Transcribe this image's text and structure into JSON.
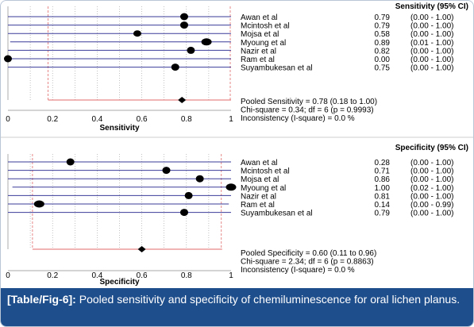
{
  "chart_data": [
    {
      "type": "forest",
      "measure": "Sensitivity",
      "header": "Sensitivity (95% CI)",
      "xlabel": "Sensitivity",
      "xlim": [
        0,
        1
      ],
      "ticks": [
        "0",
        "0.2",
        "0.4",
        "0.6",
        "0.8",
        "1"
      ],
      "studies": [
        {
          "name": "Awan et al",
          "est": 0.79,
          "lo": 0.0,
          "hi": 1.0,
          "ci_text": "(0.00 - 1.00)",
          "est_text": "0.79"
        },
        {
          "name": "Mcintosh et al",
          "est": 0.79,
          "lo": 0.0,
          "hi": 1.0,
          "ci_text": "(0.00 - 1.00)",
          "est_text": "0.79"
        },
        {
          "name": "Mojsa et al",
          "est": 0.58,
          "lo": 0.0,
          "hi": 1.0,
          "ci_text": "(0.00 - 1.00)",
          "est_text": "0.58"
        },
        {
          "name": "Myoung et al",
          "est": 0.89,
          "lo": 0.01,
          "hi": 1.0,
          "ci_text": "(0.01 - 1.00)",
          "est_text": "0.89"
        },
        {
          "name": "Nazir et al",
          "est": 0.82,
          "lo": 0.0,
          "hi": 1.0,
          "ci_text": "(0.00 - 1.00)",
          "est_text": "0.82"
        },
        {
          "name": "Ram et al",
          "est": 0.0,
          "lo": 0.0,
          "hi": 1.0,
          "ci_text": "(0.00 - 1.00)",
          "est_text": "0.00"
        },
        {
          "name": "Suyambukesan et al",
          "est": 0.75,
          "lo": 0.0,
          "hi": 1.0,
          "ci_text": "(0.00 - 1.00)",
          "est_text": "0.75"
        }
      ],
      "pooled": {
        "est": 0.78,
        "lo": 0.18,
        "hi": 1.0
      },
      "pooled_text": "Pooled Sensitivity = 0.78 (0.18 to 1.00)",
      "chi_text": "Chi-square = 0.34; df = 6 (p = 0.9993)",
      "inconsistency_text": "Inconsistency (I-square) = 0.0 %"
    },
    {
      "type": "forest",
      "measure": "Specificity",
      "header": "Specificity (95% CI)",
      "xlabel": "Specificity",
      "xlim": [
        0,
        1
      ],
      "ticks": [
        "0",
        "0.2",
        "0.4",
        "0.6",
        "0.8",
        "1"
      ],
      "studies": [
        {
          "name": "Awan et al",
          "est": 0.28,
          "lo": 0.0,
          "hi": 1.0,
          "ci_text": "(0.00 - 1.00)",
          "est_text": "0.28"
        },
        {
          "name": "Mcintosh et al",
          "est": 0.71,
          "lo": 0.0,
          "hi": 1.0,
          "ci_text": "(0.00 - 1.00)",
          "est_text": "0.71"
        },
        {
          "name": "Mojsa et al",
          "est": 0.86,
          "lo": 0.0,
          "hi": 1.0,
          "ci_text": "(0.00 - 1.00)",
          "est_text": "0.86"
        },
        {
          "name": "Myoung et al",
          "est": 1.0,
          "lo": 0.02,
          "hi": 1.0,
          "ci_text": "(0.02 - 1.00)",
          "est_text": "1.00"
        },
        {
          "name": "Nazir et al",
          "est": 0.81,
          "lo": 0.0,
          "hi": 1.0,
          "ci_text": "(0.00 - 1.00)",
          "est_text": "0.81"
        },
        {
          "name": "Ram et al",
          "est": 0.14,
          "lo": 0.0,
          "hi": 0.99,
          "ci_text": "(0.00 - 0.99)",
          "est_text": "0.14"
        },
        {
          "name": "Suyambukesan et al",
          "est": 0.79,
          "lo": 0.0,
          "hi": 1.0,
          "ci_text": "(0.00 - 1.00)",
          "est_text": "0.79"
        }
      ],
      "pooled": {
        "est": 0.6,
        "lo": 0.11,
        "hi": 0.96
      },
      "pooled_text": "Pooled Specificity = 0.60 (0.11 to 0.96)",
      "chi_text": "Chi-square = 2.34; df = 6 (p = 0.8863)",
      "inconsistency_text": "Inconsistency (I-square) = 0.0 %"
    }
  ],
  "caption": {
    "label": "[Table/Fig-6]:",
    "text": " Pooled sensitivity and specificity of chemiluminescence for oral lichen planus."
  },
  "colors": {
    "study_line": "#3b3b9a",
    "pooled_line": "#e06a6a",
    "vline_red": "#e06a6a",
    "grid": "#9a9a9a",
    "caption_bg": "#1f4e8c"
  }
}
